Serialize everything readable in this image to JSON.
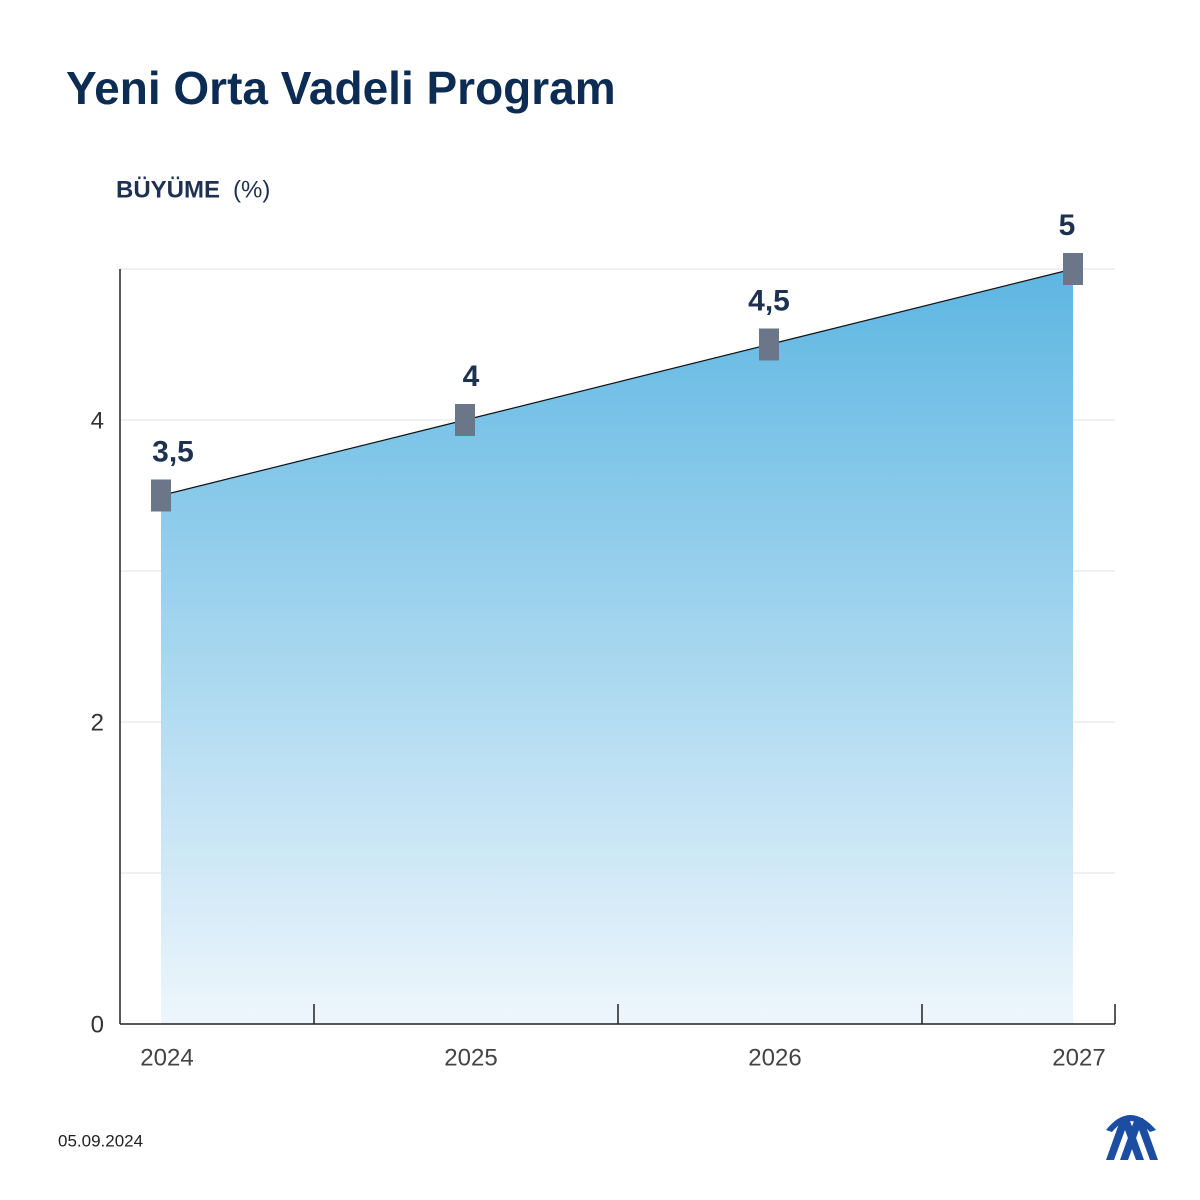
{
  "chart_data": {
    "type": "area",
    "title": "Yeni Orta Vadeli Program",
    "y_label": "BÜYÜME",
    "y_unit": "(%)",
    "categories": [
      "2024",
      "2025",
      "2026",
      "2027"
    ],
    "values": [
      3.5,
      4,
      4.5,
      5
    ],
    "value_labels": [
      "3,5",
      "4",
      "4,5",
      "5"
    ],
    "color": "#5db6e2",
    "marker_color": "#6b7788",
    "ylim": [
      0,
      5
    ],
    "yticks": [
      0,
      2,
      4
    ],
    "yminor": [
      1,
      3,
      5
    ],
    "grid": true,
    "date": "05.09.2024"
  }
}
